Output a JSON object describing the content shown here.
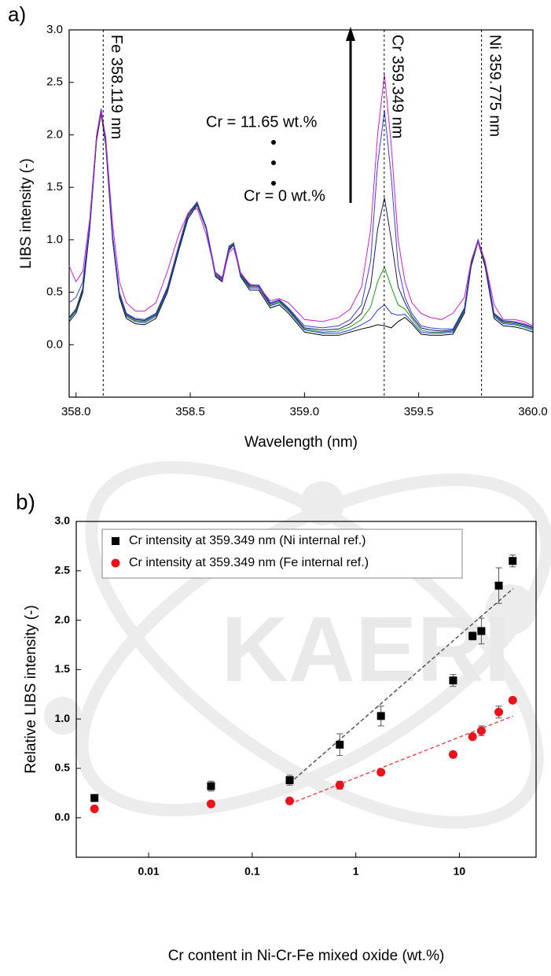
{
  "chart_data": [
    {
      "type": "line",
      "panel_label": "a)",
      "x_label": "Wavelength (nm)",
      "y_label": "LIBS intensity  (-)",
      "xlim": [
        357.97,
        360.0
      ],
      "ylim": [
        -0.5,
        3.0
      ],
      "xticks": [
        {
          "value": 358,
          "label": "358.0"
        },
        358.5,
        {
          "value": 359,
          "label": "359.0"
        },
        359.5,
        {
          "value": 360,
          "label": "360.0"
        }
      ],
      "yticks": [
        {
          "value": 0,
          "label": "0.0"
        },
        0.5,
        {
          "value": 1,
          "label": "1.0"
        },
        1.5,
        {
          "value": 2,
          "label": "2.0"
        },
        2.5,
        {
          "value": 3,
          "label": "3.0"
        }
      ],
      "peak_lines": [
        {
          "x": 358.119,
          "label": "Fe 358.119 nm"
        },
        {
          "x": 359.349,
          "label": "Cr 359.349 nm"
        },
        {
          "x": 359.775,
          "label": "Ni 359.775 nm"
        }
      ],
      "annotations": [
        "Cr = 11.65 wt.%",
        "Cr = 0 wt.%"
      ],
      "x": [
        357.97,
        358.0,
        358.03,
        358.06,
        358.09,
        358.11,
        358.13,
        358.16,
        358.19,
        358.22,
        358.26,
        358.3,
        358.35,
        358.4,
        358.45,
        358.49,
        358.53,
        358.57,
        358.61,
        358.64,
        358.67,
        358.69,
        358.72,
        358.76,
        358.8,
        358.85,
        358.89,
        358.93,
        359.0,
        359.08,
        359.15,
        359.2,
        359.25,
        359.29,
        359.32,
        359.35,
        359.38,
        359.41,
        359.44,
        359.47,
        359.51,
        359.55,
        359.6,
        359.65,
        359.7,
        359.73,
        359.76,
        359.79,
        359.83,
        359.87,
        359.92,
        359.96,
        360.0
      ],
      "series": [
        {
          "color": "#000000",
          "values": [
            0.22,
            0.3,
            0.5,
            1.1,
            1.95,
            2.2,
            1.9,
            1.0,
            0.45,
            0.25,
            0.2,
            0.19,
            0.25,
            0.5,
            0.9,
            1.2,
            1.33,
            1.1,
            0.65,
            0.6,
            0.9,
            0.95,
            0.65,
            0.52,
            0.52,
            0.35,
            0.38,
            0.3,
            0.12,
            0.09,
            0.09,
            0.12,
            0.15,
            0.17,
            0.19,
            0.18,
            0.16,
            0.22,
            0.26,
            0.2,
            0.1,
            0.09,
            0.09,
            0.1,
            0.3,
            0.75,
            0.98,
            0.75,
            0.25,
            0.18,
            0.17,
            0.15,
            0.12
          ]
        },
        {
          "color": "#1f3fd8",
          "values": [
            0.24,
            0.32,
            0.52,
            1.12,
            1.97,
            2.22,
            1.92,
            1.02,
            0.47,
            0.27,
            0.22,
            0.21,
            0.27,
            0.52,
            0.92,
            1.22,
            1.34,
            1.1,
            0.66,
            0.61,
            0.91,
            0.96,
            0.66,
            0.54,
            0.54,
            0.37,
            0.4,
            0.32,
            0.14,
            0.11,
            0.11,
            0.14,
            0.19,
            0.24,
            0.33,
            0.38,
            0.3,
            0.28,
            0.29,
            0.22,
            0.12,
            0.11,
            0.11,
            0.12,
            0.32,
            0.77,
            0.99,
            0.77,
            0.27,
            0.2,
            0.19,
            0.17,
            0.14
          ]
        },
        {
          "color": "#1a9a1a",
          "values": [
            0.25,
            0.33,
            0.53,
            1.13,
            1.98,
            2.23,
            1.93,
            1.03,
            0.48,
            0.28,
            0.23,
            0.22,
            0.28,
            0.53,
            0.93,
            1.23,
            1.34,
            1.11,
            0.67,
            0.62,
            0.92,
            0.96,
            0.67,
            0.55,
            0.55,
            0.38,
            0.41,
            0.33,
            0.15,
            0.12,
            0.13,
            0.17,
            0.24,
            0.36,
            0.6,
            0.74,
            0.55,
            0.38,
            0.34,
            0.25,
            0.14,
            0.12,
            0.12,
            0.13,
            0.33,
            0.78,
            0.99,
            0.78,
            0.28,
            0.21,
            0.2,
            0.18,
            0.15
          ]
        },
        {
          "color": "#1a1a60",
          "values": [
            0.26,
            0.34,
            0.54,
            1.14,
            1.99,
            2.24,
            1.94,
            1.04,
            0.49,
            0.29,
            0.24,
            0.23,
            0.29,
            0.54,
            0.94,
            1.24,
            1.35,
            1.12,
            0.68,
            0.63,
            0.93,
            0.97,
            0.68,
            0.56,
            0.56,
            0.39,
            0.42,
            0.34,
            0.16,
            0.14,
            0.15,
            0.2,
            0.3,
            0.56,
            1.1,
            1.4,
            1.0,
            0.55,
            0.4,
            0.27,
            0.16,
            0.14,
            0.13,
            0.14,
            0.34,
            0.79,
            1.0,
            0.79,
            0.29,
            0.22,
            0.21,
            0.19,
            0.16
          ]
        },
        {
          "color": "#3a3af0",
          "values": [
            0.4,
            0.45,
            0.6,
            1.15,
            2.0,
            2.25,
            1.95,
            1.05,
            0.5,
            0.3,
            0.25,
            0.24,
            0.3,
            0.55,
            0.95,
            1.25,
            1.36,
            1.12,
            0.69,
            0.64,
            0.94,
            0.97,
            0.69,
            0.57,
            0.57,
            0.4,
            0.43,
            0.35,
            0.18,
            0.16,
            0.18,
            0.24,
            0.38,
            0.8,
            1.72,
            2.23,
            1.6,
            0.75,
            0.45,
            0.3,
            0.18,
            0.16,
            0.15,
            0.15,
            0.35,
            0.8,
            1.0,
            0.8,
            0.3,
            0.23,
            0.22,
            0.2,
            0.17
          ]
        },
        {
          "color": "#d21ec8",
          "values": [
            0.75,
            0.6,
            0.7,
            1.2,
            2.0,
            2.22,
            1.98,
            1.15,
            0.6,
            0.4,
            0.32,
            0.32,
            0.4,
            0.7,
            1.05,
            1.25,
            1.3,
            1.05,
            0.68,
            0.62,
            0.88,
            0.92,
            0.68,
            0.58,
            0.55,
            0.42,
            0.44,
            0.4,
            0.24,
            0.22,
            0.26,
            0.34,
            0.55,
            1.1,
            2.0,
            2.58,
            1.9,
            1.0,
            0.6,
            0.4,
            0.3,
            0.26,
            0.24,
            0.3,
            0.45,
            0.8,
            0.98,
            0.8,
            0.38,
            0.24,
            0.24,
            0.22,
            0.18
          ]
        }
      ]
    },
    {
      "type": "scatter",
      "panel_label": "b)",
      "x_label": "Cr content in Ni-Cr-Fe mixed oxide (wt.%)",
      "y_label": "Relative LIBS intensity  (-)",
      "x_scale": "log",
      "xlim": [
        0.002,
        55
      ],
      "ylim": [
        -0.4,
        3.0
      ],
      "xticks": [
        0.01,
        0.1,
        1,
        10
      ],
      "yticks": [
        {
          "value": 0,
          "label": "0.0"
        },
        0.5,
        {
          "value": 1,
          "label": "1.0"
        },
        1.5,
        {
          "value": 2,
          "label": "2.0"
        },
        2.5,
        {
          "value": 3,
          "label": "3.0"
        }
      ],
      "legend": "upper left",
      "watermark": "KAERI",
      "series": [
        {
          "name": "Cr intensity at 359.349 nm (Ni internal ref.)",
          "color": "#000000",
          "marker": "square",
          "x": [
            0.003,
            0.04,
            0.23,
            0.7,
            1.75,
            8.7,
            13.4,
            16.3,
            24,
            32.7
          ],
          "values": [
            0.2,
            0.32,
            0.38,
            0.74,
            1.03,
            1.39,
            1.84,
            1.89,
            2.35,
            2.6
          ],
          "errors": [
            0.02,
            0.05,
            0.05,
            0.11,
            0.1,
            0.06,
            0.04,
            0.13,
            0.18,
            0.06
          ]
        },
        {
          "name": "Cr intensity at 359.349 nm (Fe internal ref.)",
          "color": "#e8141c",
          "marker": "circle",
          "x": [
            0.003,
            0.04,
            0.23,
            0.7,
            1.75,
            8.7,
            13.4,
            16.3,
            24,
            32.7
          ],
          "values": [
            0.09,
            0.14,
            0.17,
            0.33,
            0.46,
            0.64,
            0.82,
            0.88,
            1.07,
            1.19
          ],
          "errors": [
            0.01,
            0.01,
            0.01,
            0.04,
            0.02,
            0.03,
            0.03,
            0.05,
            0.06,
            0.02
          ]
        }
      ],
      "fits": [
        {
          "color": "#555555",
          "x": [
            0.23,
            33
          ],
          "values": [
            0.35,
            2.32
          ]
        },
        {
          "color": "#e85050",
          "x": [
            0.23,
            33
          ],
          "values": [
            0.14,
            1.03
          ]
        }
      ]
    }
  ]
}
